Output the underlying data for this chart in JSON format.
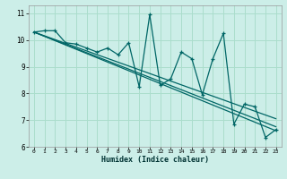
{
  "xlabel": "Humidex (Indice chaleur)",
  "ylabel": "",
  "bg_color": "#cceee8",
  "grid_color": "#aaddcc",
  "line_color": "#006666",
  "xlim": [
    -0.5,
    23.5
  ],
  "ylim": [
    6,
    11.3
  ],
  "yticks": [
    6,
    7,
    8,
    9,
    10,
    11
  ],
  "xticks": [
    0,
    1,
    2,
    3,
    4,
    5,
    6,
    7,
    8,
    9,
    10,
    11,
    12,
    13,
    14,
    15,
    16,
    17,
    18,
    19,
    20,
    21,
    22,
    23
  ],
  "series": [
    [
      0,
      10.3
    ],
    [
      1,
      10.35
    ],
    [
      2,
      10.35
    ],
    [
      3,
      9.9
    ],
    [
      4,
      9.85
    ],
    [
      5,
      9.7
    ],
    [
      6,
      9.55
    ],
    [
      7,
      9.7
    ],
    [
      8,
      9.45
    ],
    [
      9,
      9.9
    ],
    [
      10,
      8.25
    ],
    [
      11,
      10.95
    ],
    [
      12,
      8.3
    ],
    [
      13,
      8.55
    ],
    [
      14,
      9.55
    ],
    [
      15,
      9.3
    ],
    [
      16,
      7.95
    ],
    [
      17,
      9.3
    ],
    [
      18,
      10.25
    ],
    [
      19,
      6.85
    ],
    [
      20,
      7.6
    ],
    [
      21,
      7.5
    ],
    [
      22,
      6.35
    ],
    [
      23,
      6.65
    ]
  ],
  "trend_lines": [
    [
      [
        0,
        10.3
      ],
      [
        23,
        6.6
      ]
    ],
    [
      [
        0,
        10.3
      ],
      [
        23,
        6.75
      ]
    ],
    [
      [
        0,
        10.3
      ],
      [
        23,
        7.05
      ]
    ]
  ]
}
